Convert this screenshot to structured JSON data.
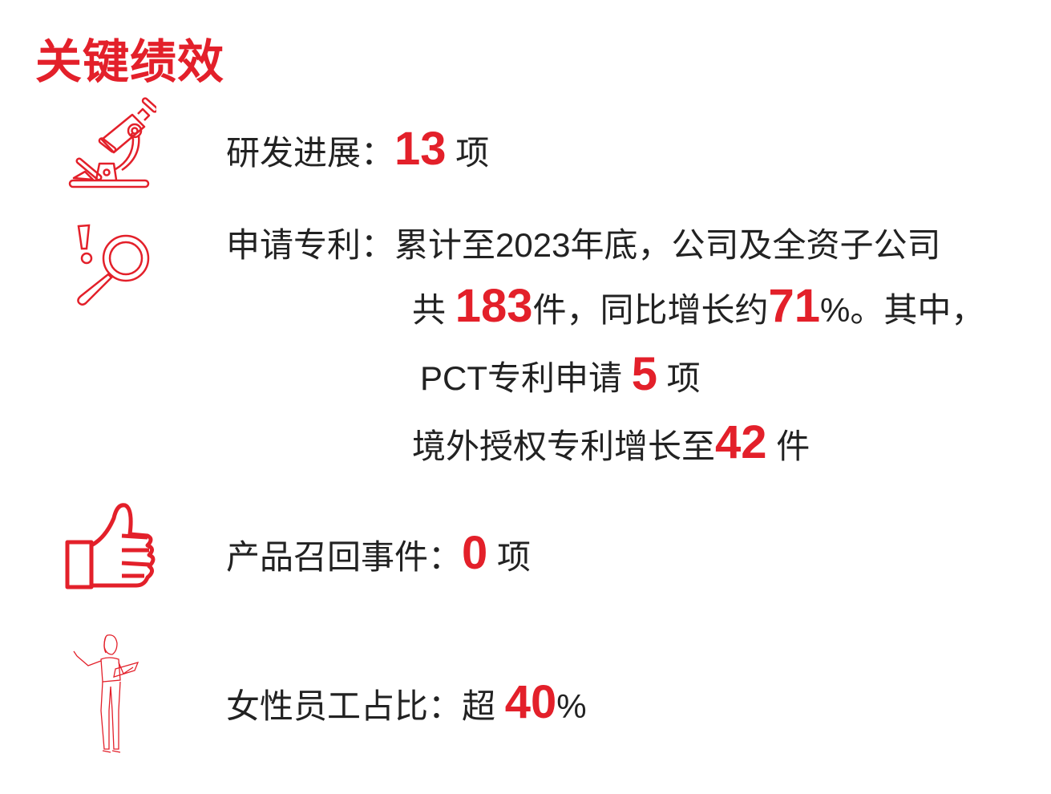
{
  "title": "关键绩效",
  "accent_color": "#e3202a",
  "rd": {
    "icon": "microscope-icon",
    "label": "研发进展：",
    "value": "13",
    "unit": "项"
  },
  "patent": {
    "icon": "magnifier-alert-icon",
    "label": "申请专利：",
    "line1": "累计至2023年底，公司及全资子公司",
    "line2_pre": "共",
    "line2_value": "183",
    "line2_mid": "件，同比增长约",
    "line2_pct": "71",
    "line2_post": "%。其中，",
    "line3_pre": "PCT专利申请",
    "line3_value": "5",
    "line3_unit": "项",
    "line4_pre": "境外授权专利增长至",
    "line4_value": "42",
    "line4_unit": "件"
  },
  "recall": {
    "icon": "thumbs-up-icon",
    "label": "产品召回事件：",
    "value": "0",
    "unit": "项"
  },
  "female": {
    "icon": "woman-presenter-icon",
    "label": "女性员工占比：",
    "prefix": "超",
    "value": "40",
    "unit": "%"
  }
}
